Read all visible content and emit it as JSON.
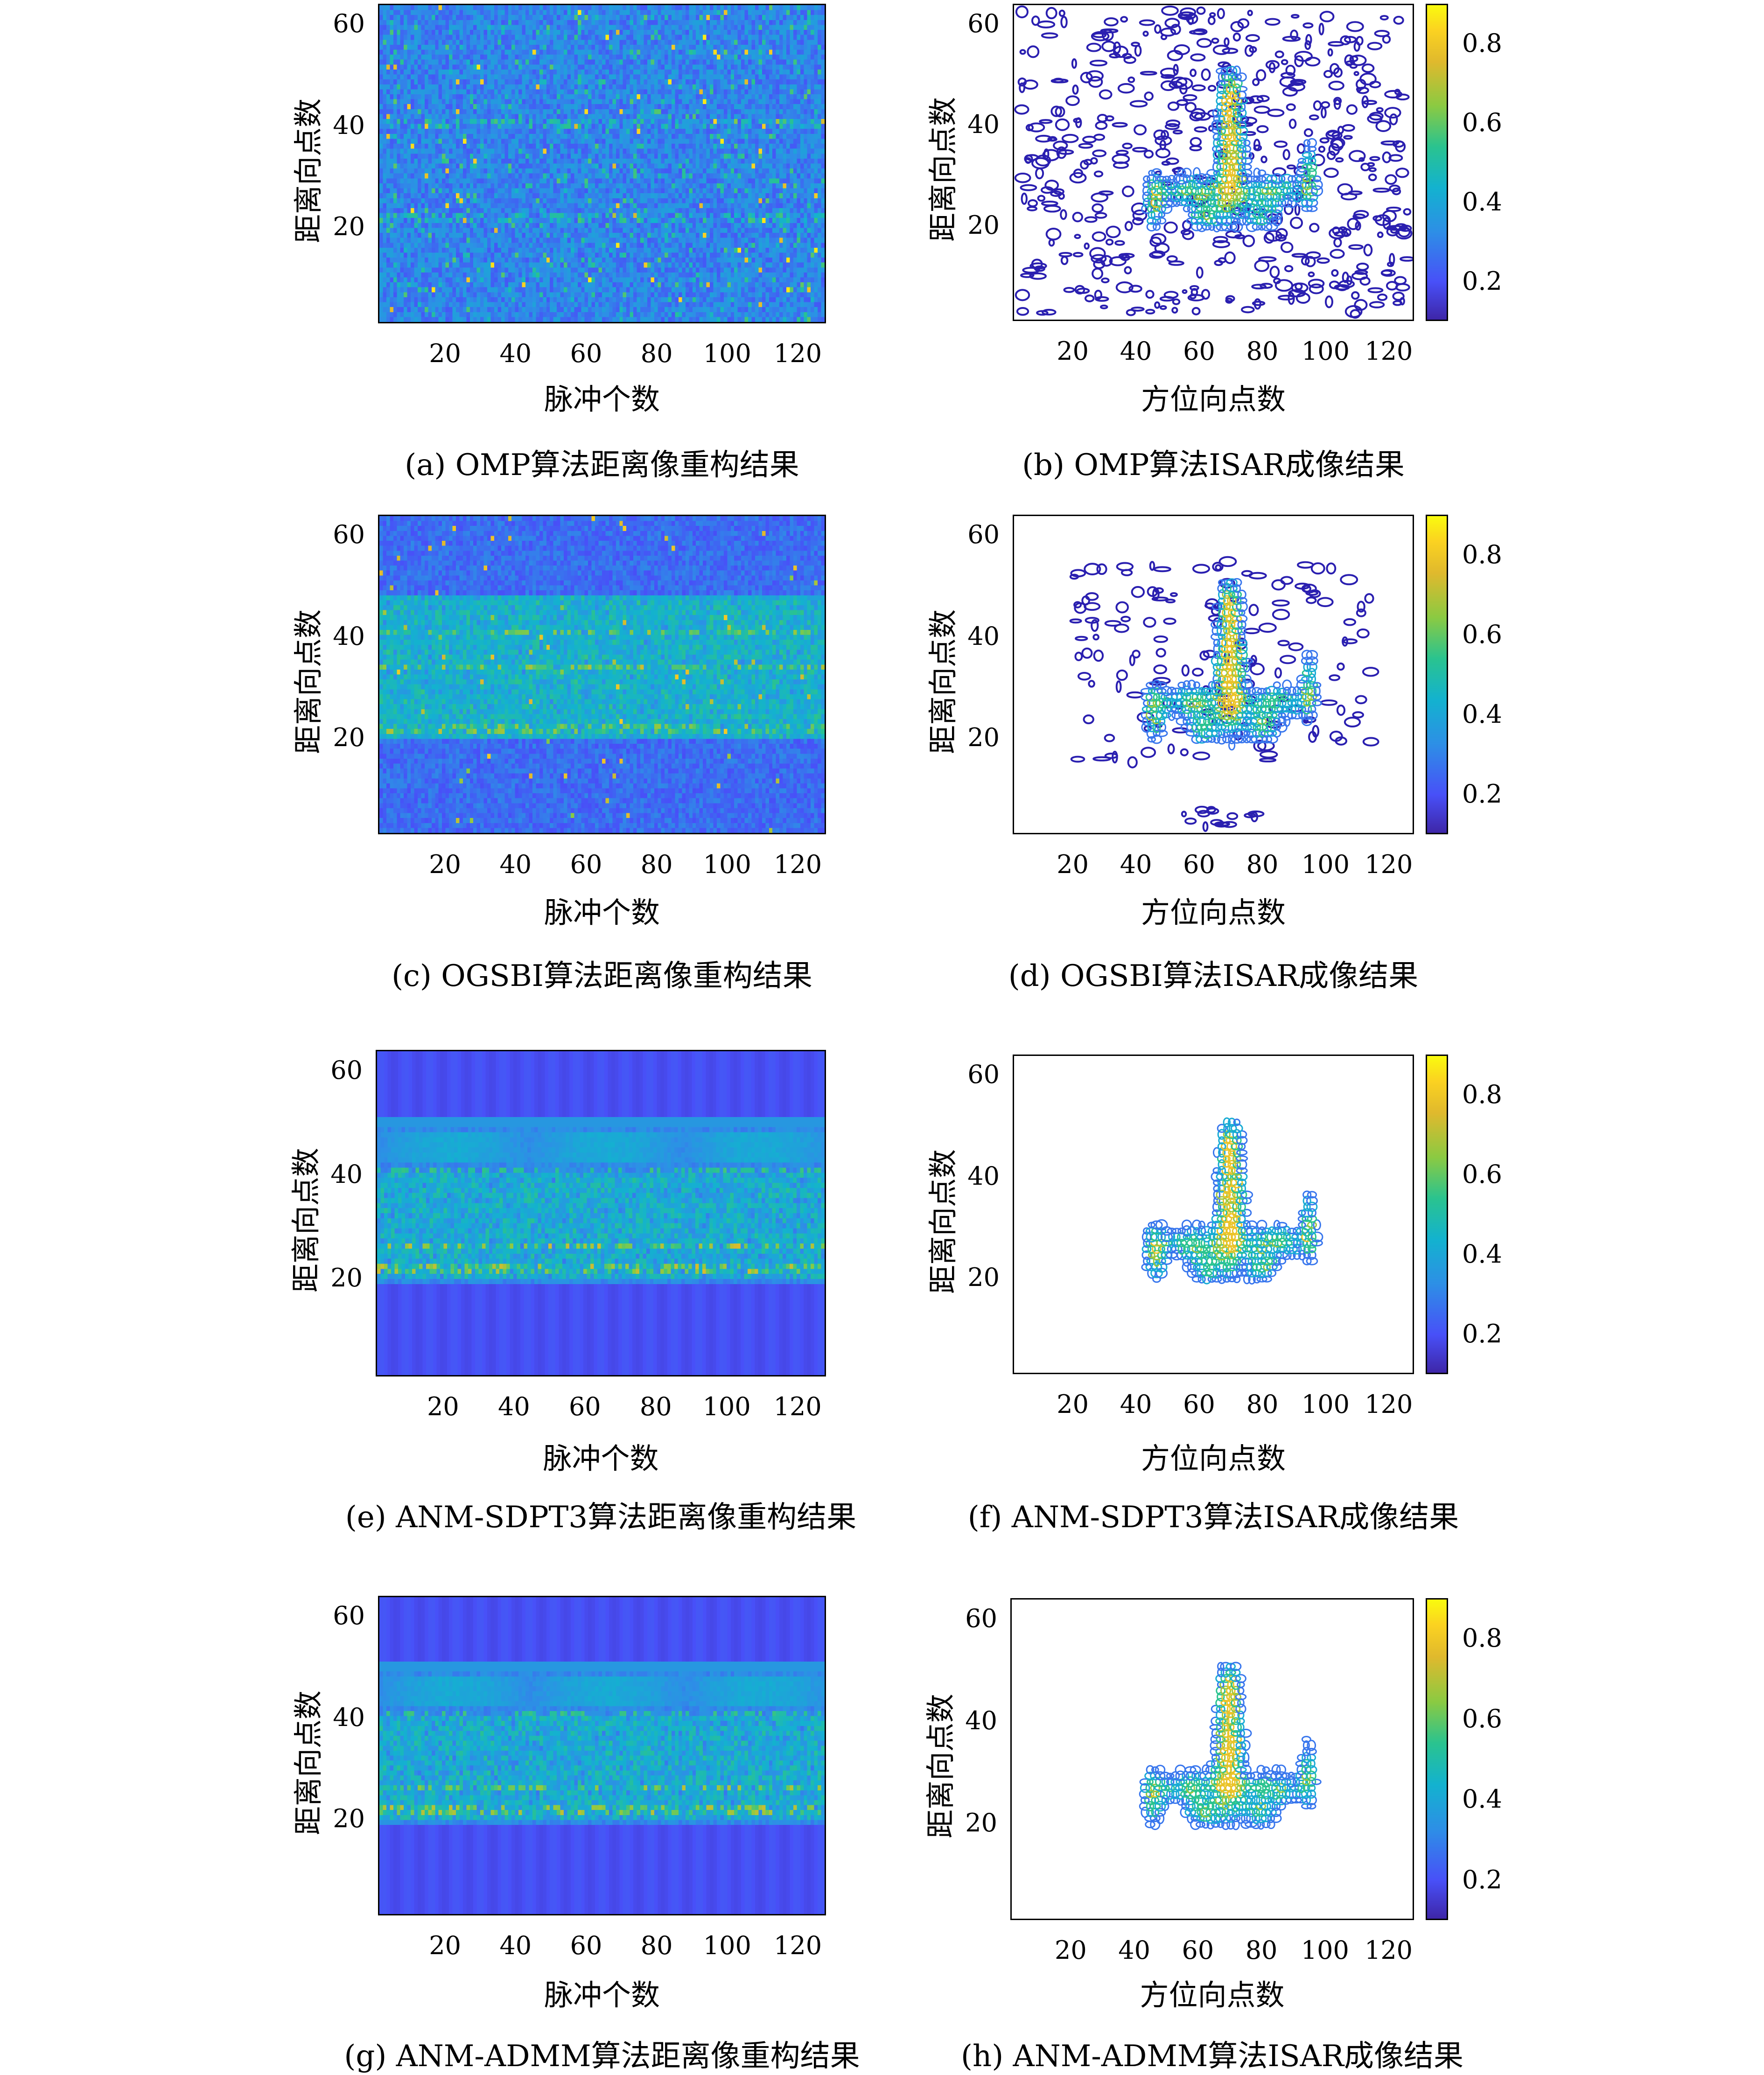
{
  "colors": {
    "background_dark": "#2b2fa0",
    "contour_line": "#2a1fb0",
    "bright": "#f9fb0e"
  },
  "chart_data": [
    {
      "id": "a",
      "type": "heatmap",
      "caption": "(a) OMP算法距离像重构结果",
      "xlabel": "脉冲个数",
      "ylabel": "距离向点数",
      "xticks": [
        "20",
        "40",
        "60",
        "80",
        "100",
        "120"
      ],
      "yticks": [
        "20",
        "40",
        "60"
      ],
      "xlim": [
        1,
        128
      ],
      "ylim": [
        1,
        64
      ],
      "profile": "sparse-random"
    },
    {
      "id": "b",
      "type": "contour",
      "caption": "(b) OMP算法ISAR成像结果",
      "xlabel": "方位向点数",
      "ylabel": "距离向点数",
      "xticks": [
        "20",
        "40",
        "60",
        "80",
        "100",
        "120"
      ],
      "yticks": [
        "20",
        "40",
        "60"
      ],
      "cticks": [
        "0.2",
        "0.4",
        "0.6",
        "0.8"
      ],
      "xlim": [
        1,
        128
      ],
      "ylim": [
        1,
        64
      ],
      "clim": [
        0.1,
        0.9
      ],
      "noise": "high"
    },
    {
      "id": "c",
      "type": "heatmap",
      "caption": "(c) OGSBI算法距离像重构结果",
      "xlabel": "脉冲个数",
      "ylabel": "距离向点数",
      "xticks": [
        "20",
        "40",
        "60",
        "80",
        "100",
        "120"
      ],
      "yticks": [
        "20",
        "40",
        "60"
      ],
      "xlim": [
        1,
        128
      ],
      "ylim": [
        1,
        64
      ],
      "profile": "banded-noisy"
    },
    {
      "id": "d",
      "type": "contour",
      "caption": "(d) OGSBI算法ISAR成像结果",
      "xlabel": "方位向点数",
      "ylabel": "距离向点数",
      "xticks": [
        "20",
        "40",
        "60",
        "80",
        "100",
        "120"
      ],
      "yticks": [
        "20",
        "40",
        "60"
      ],
      "cticks": [
        "0.2",
        "0.4",
        "0.6",
        "0.8"
      ],
      "xlim": [
        1,
        128
      ],
      "ylim": [
        1,
        64
      ],
      "clim": [
        0.1,
        0.9
      ],
      "noise": "medium"
    },
    {
      "id": "e",
      "type": "heatmap",
      "caption": "(e) ANM-SDPT3算法距离像重构结果",
      "xlabel": "脉冲个数",
      "ylabel": "距离向点数",
      "xticks": [
        "20",
        "40",
        "60",
        "80",
        "100",
        "120"
      ],
      "yticks": [
        "20",
        "40",
        "60"
      ],
      "xlim": [
        1,
        128
      ],
      "ylim": [
        1,
        64
      ],
      "profile": "banded-clean"
    },
    {
      "id": "f",
      "type": "contour",
      "caption": "(f) ANM-SDPT3算法ISAR成像结果",
      "xlabel": "方位向点数",
      "ylabel": "距离向点数",
      "xticks": [
        "20",
        "40",
        "60",
        "80",
        "100",
        "120"
      ],
      "yticks": [
        "20",
        "40",
        "60"
      ],
      "cticks": [
        "0.2",
        "0.4",
        "0.6",
        "0.8"
      ],
      "xlim": [
        1,
        128
      ],
      "ylim": [
        1,
        64
      ],
      "clim": [
        0.1,
        0.9
      ],
      "noise": "none"
    },
    {
      "id": "g",
      "type": "heatmap",
      "caption": "(g) ANM-ADMM算法距离像重构结果",
      "xlabel": "脉冲个数",
      "ylabel": "距离向点数",
      "xticks": [
        "20",
        "40",
        "60",
        "80",
        "100",
        "120"
      ],
      "yticks": [
        "20",
        "40",
        "60"
      ],
      "xlim": [
        1,
        128
      ],
      "ylim": [
        1,
        64
      ],
      "profile": "banded-clean"
    },
    {
      "id": "h",
      "type": "contour",
      "caption": "(h) ANM-ADMM算法ISAR成像结果",
      "xlabel": "方位向点数",
      "ylabel": "距离向点数",
      "xticks": [
        "20",
        "40",
        "60",
        "80",
        "100",
        "120"
      ],
      "yticks": [
        "20",
        "40",
        "60"
      ],
      "cticks": [
        "0.2",
        "0.4",
        "0.6",
        "0.8"
      ],
      "xlim": [
        1,
        128
      ],
      "ylim": [
        1,
        64
      ],
      "clim": [
        0.1,
        0.9
      ],
      "noise": "none"
    }
  ]
}
